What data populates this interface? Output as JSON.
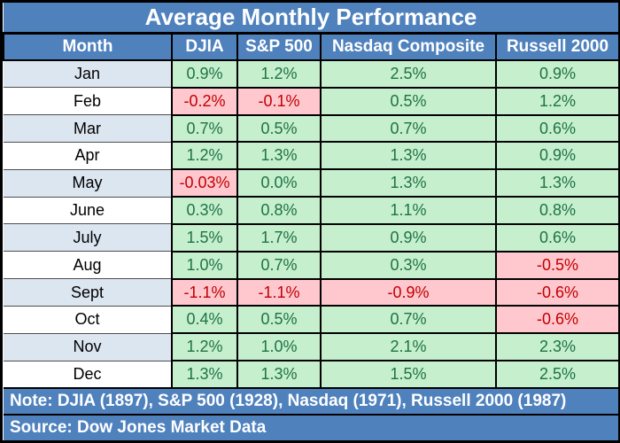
{
  "title": "Average Monthly Performance",
  "columns": [
    "Month",
    "DJIA",
    "S&P 500",
    "Nasdaq Composite",
    "Russell 2000"
  ],
  "rows": [
    {
      "month": "Jan",
      "values": [
        "0.9%",
        "1.2%",
        "2.5%",
        "0.9%"
      ]
    },
    {
      "month": "Feb",
      "values": [
        "-0.2%",
        "-0.1%",
        "0.5%",
        "1.2%"
      ]
    },
    {
      "month": "Mar",
      "values": [
        "0.7%",
        "0.5%",
        "0.7%",
        "0.6%"
      ]
    },
    {
      "month": "Apr",
      "values": [
        "1.2%",
        "1.3%",
        "1.3%",
        "0.9%"
      ]
    },
    {
      "month": "May",
      "values": [
        "-0.03%",
        "0.0%",
        "1.3%",
        "1.3%"
      ]
    },
    {
      "month": "June",
      "values": [
        "0.3%",
        "0.8%",
        "1.1%",
        "0.8%"
      ]
    },
    {
      "month": "July",
      "values": [
        "1.5%",
        "1.7%",
        "0.9%",
        "0.6%"
      ]
    },
    {
      "month": "Aug",
      "values": [
        "1.0%",
        "0.7%",
        "0.3%",
        "-0.5%"
      ]
    },
    {
      "month": "Sept",
      "values": [
        "-1.1%",
        "-1.1%",
        "-0.9%",
        "-0.6%"
      ]
    },
    {
      "month": "Oct",
      "values": [
        "0.4%",
        "0.5%",
        "0.7%",
        "-0.6%"
      ]
    },
    {
      "month": "Nov",
      "values": [
        "1.2%",
        "1.0%",
        "2.1%",
        "2.3%"
      ]
    },
    {
      "month": "Dec",
      "values": [
        "1.3%",
        "1.3%",
        "1.5%",
        "2.5%"
      ]
    }
  ],
  "note": "Note: DJIA (1897), S&P 500 (1928), Nasdaq (1971), Russell 2000 (1987)",
  "source": "Source: Dow Jones Market Data",
  "colors": {
    "header_blue": "#4f81bd",
    "row_alt_blue": "#dce6f1",
    "positive_bg": "#c6efce",
    "positive_text": "#1f7244",
    "negative_bg": "#ffc7ce",
    "negative_text": "#c00000"
  },
  "chart_data": {
    "type": "table",
    "title": "Average Monthly Performance",
    "unit": "%",
    "categories": [
      "Jan",
      "Feb",
      "Mar",
      "Apr",
      "May",
      "June",
      "July",
      "Aug",
      "Sept",
      "Oct",
      "Nov",
      "Dec"
    ],
    "series": [
      {
        "name": "DJIA",
        "values": [
          0.9,
          -0.2,
          0.7,
          1.2,
          -0.03,
          0.3,
          1.5,
          1.0,
          -1.1,
          0.4,
          1.2,
          1.3
        ]
      },
      {
        "name": "S&P 500",
        "values": [
          1.2,
          -0.1,
          0.5,
          1.3,
          0.0,
          0.8,
          1.7,
          0.7,
          -1.1,
          0.5,
          1.0,
          1.3
        ]
      },
      {
        "name": "Nasdaq Composite",
        "values": [
          2.5,
          0.5,
          0.7,
          1.3,
          1.3,
          1.1,
          0.9,
          0.3,
          -0.9,
          0.7,
          2.1,
          1.5
        ]
      },
      {
        "name": "Russell 2000",
        "values": [
          0.9,
          1.2,
          0.6,
          0.9,
          1.3,
          0.8,
          0.6,
          -0.5,
          -0.6,
          -0.6,
          2.3,
          2.5
        ]
      }
    ],
    "legend_position": "none",
    "note": "Note: DJIA (1897), S&P 500 (1928), Nasdaq (1971), Russell 2000 (1987)",
    "source": "Source: Dow Jones Market Data",
    "conditional_format": "positive values green, negative values red"
  }
}
